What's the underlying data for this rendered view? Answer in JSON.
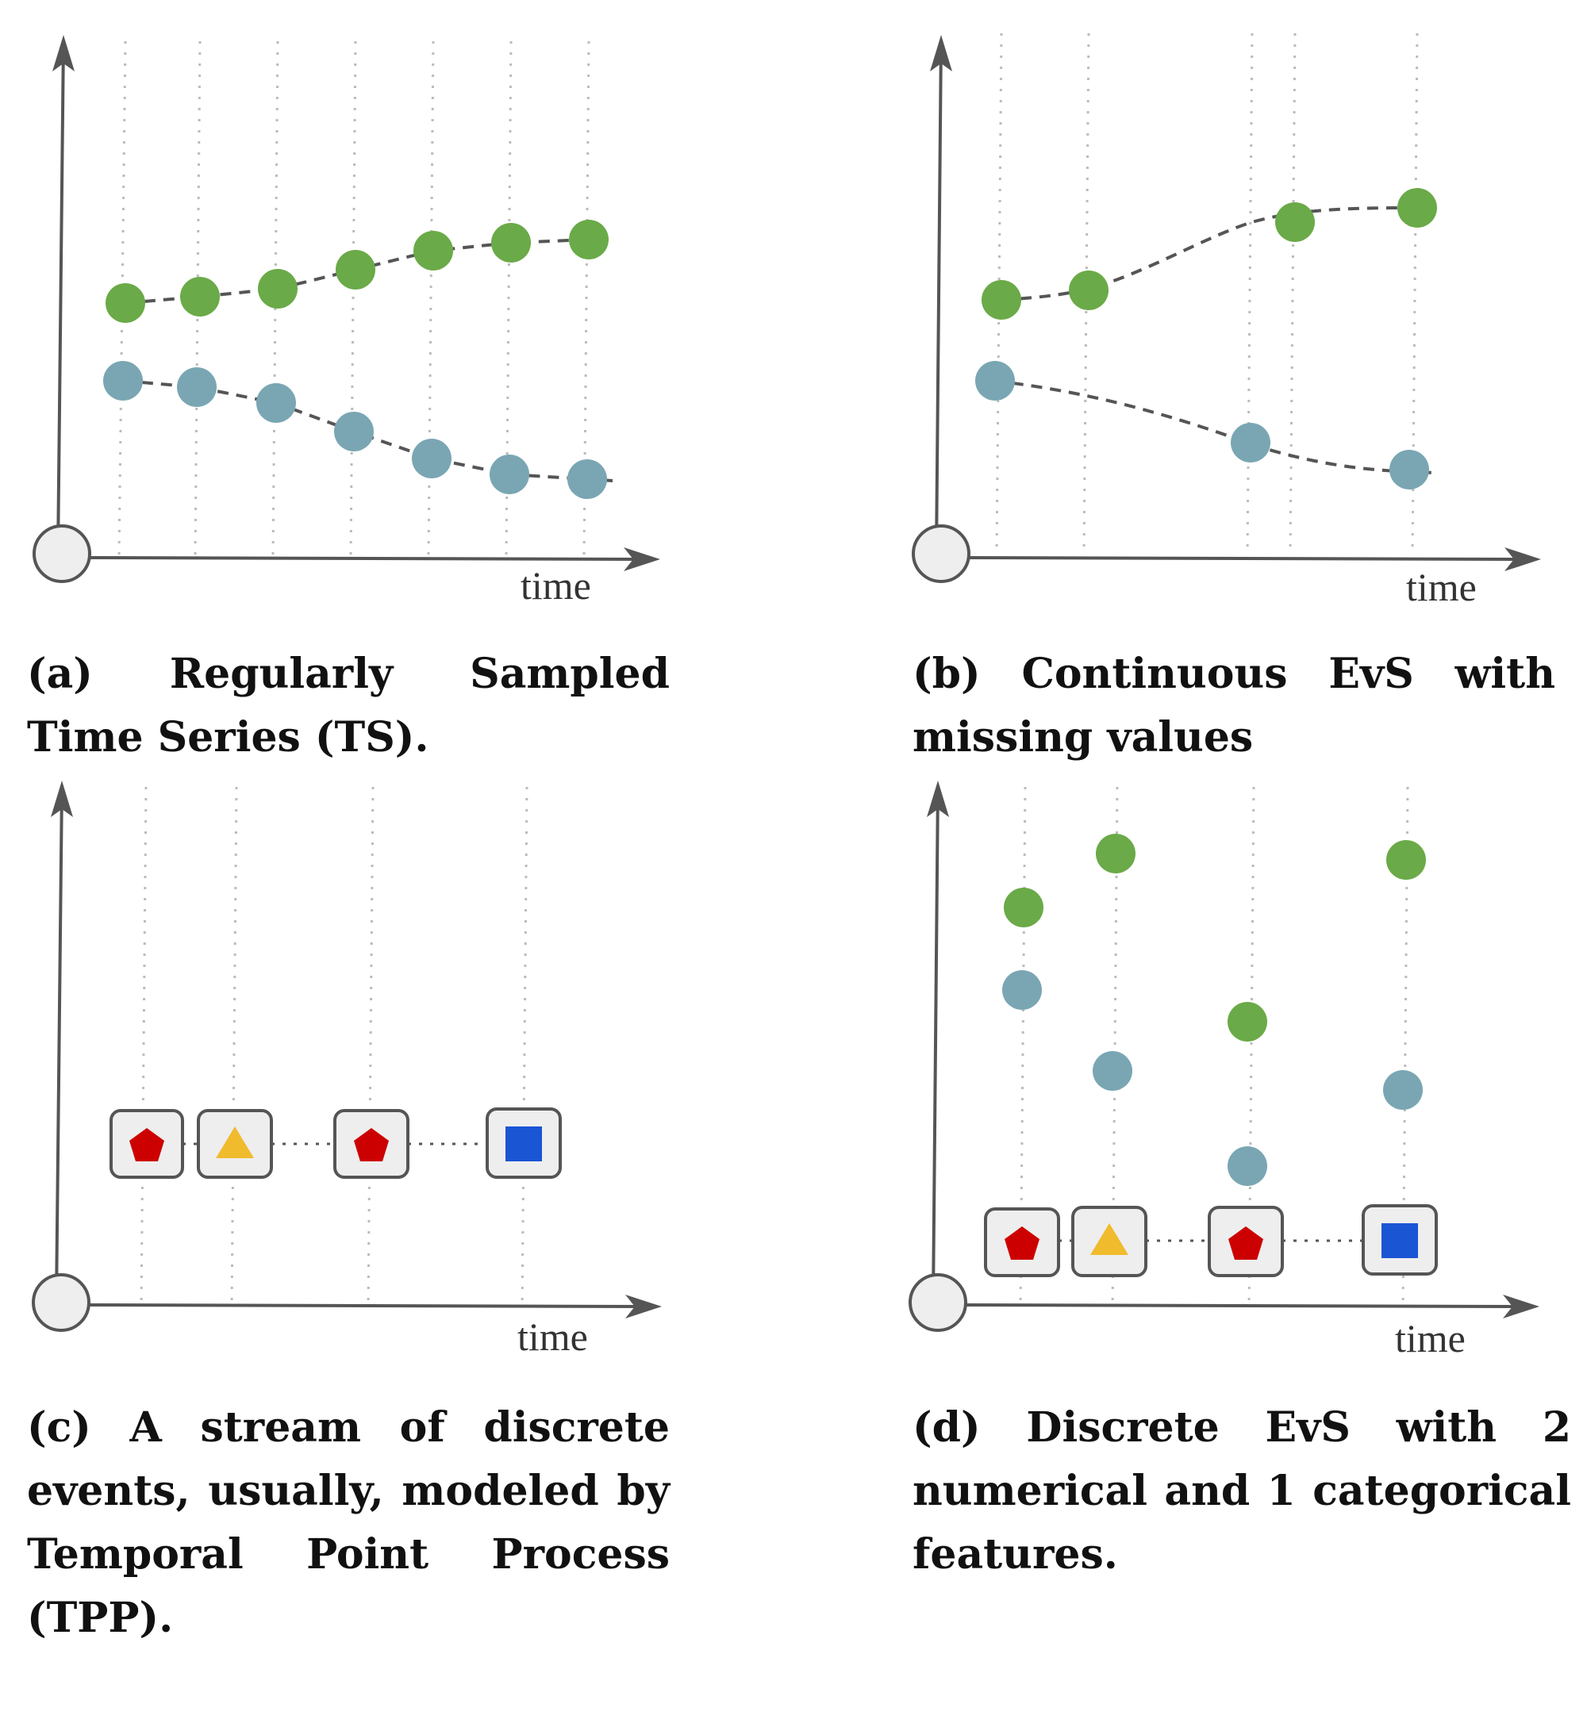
{
  "panels": {
    "a": {
      "caption": "(a) Regularly Sampled Time Series (TS).",
      "x_axis_label": "time"
    },
    "b": {
      "caption": "(b) Continuous EvS with missing values",
      "x_axis_label": "time"
    },
    "c": {
      "caption": "(c) A stream of discrete events, usually, modeled by Temporal Point Process (TPP).",
      "x_axis_label": "time"
    },
    "d": {
      "caption": "(d) Discrete EvS with 2 numerical and 1 categorical features.",
      "x_axis_label": "time"
    }
  },
  "colors": {
    "series_green": "#6aaa48",
    "series_teal": "#7aa6b3",
    "axis": "#555555",
    "grid": "#bbbbbb",
    "event_box_fill": "#eeeeee",
    "event_box_stroke": "#555555",
    "pentagon": "#cc0000",
    "triangle": "#f0bb2c",
    "square": "#1a55d4"
  },
  "event_icons": [
    "pentagon-icon",
    "triangle-icon",
    "pentagon-icon",
    "square-icon"
  ]
}
